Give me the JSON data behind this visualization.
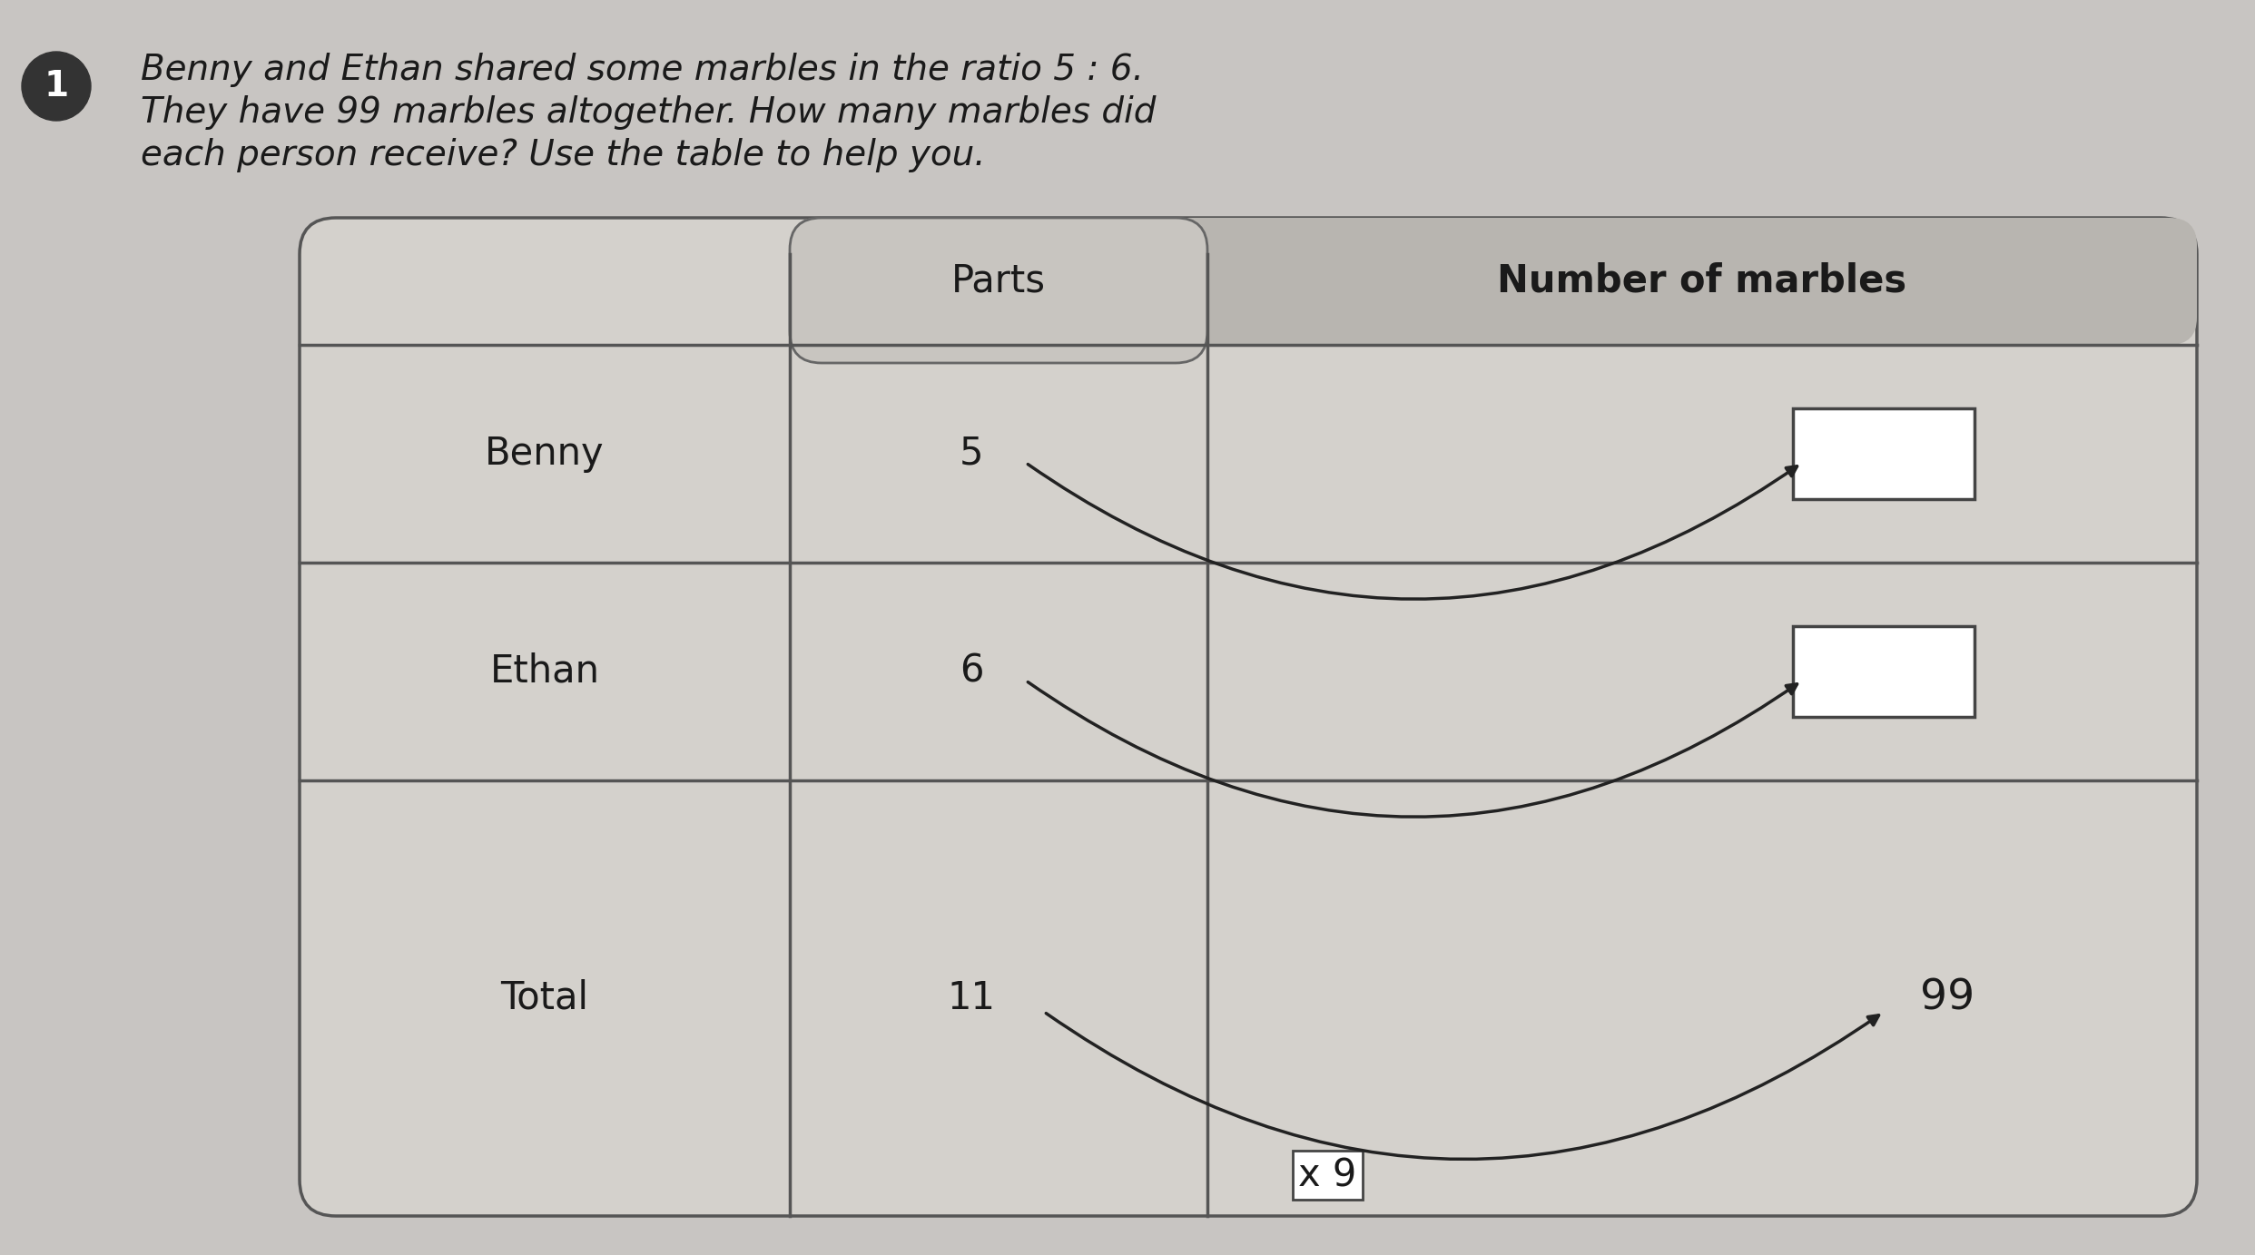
{
  "title_line1": "Benny and Ethan shared some marbles in the ratio 5 : 6.",
  "title_line2": "They have 99 marbles altogether. How many marbles did",
  "title_line3": "each person receive? Use the table to help you.",
  "question_number": "1",
  "col_headers": [
    "Parts",
    "Number of marbles"
  ],
  "row_labels": [
    "Benny",
    "Ethan",
    "Total"
  ],
  "parts_values": [
    "5",
    "6",
    "11"
  ],
  "number_values": [
    "",
    "",
    "99"
  ],
  "multiplier_label": "x 9",
  "bg_color": "#d8d5d0",
  "header_bg_color": "#c8c5c0",
  "table_bg_color": "#d0cdc8",
  "outer_bg": "#c8c4be",
  "white_box_color": "#ffffff",
  "text_color": "#1a1a1a",
  "title_font_size": 28,
  "label_font_size": 30,
  "value_font_size": 30,
  "header_font_size": 26
}
